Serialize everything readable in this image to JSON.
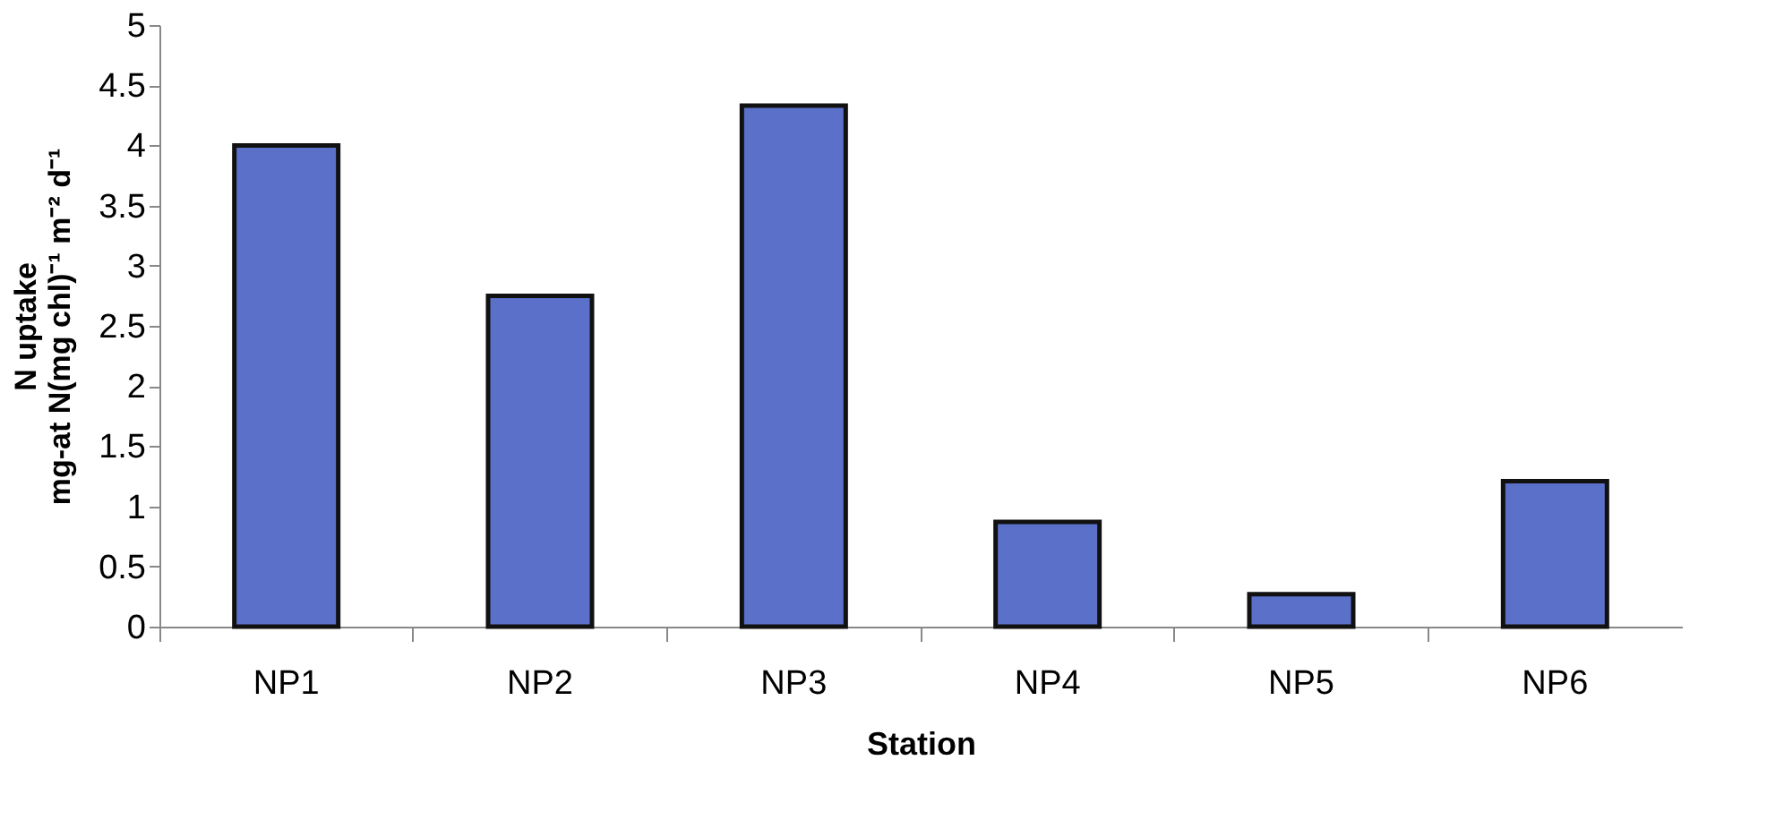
{
  "chart_data": {
    "type": "bar",
    "xlabel": "Station",
    "ylabel": "N uptake\nmg-at N(mg chl)⁻¹ m⁻² d⁻¹",
    "categories": [
      "NP1",
      "NP2",
      "NP3",
      "NP4",
      "NP5",
      "NP6"
    ],
    "values": [
      4.0,
      2.75,
      4.33,
      0.87,
      0.27,
      1.21
    ],
    "color": "#5b70c8",
    "ylim": [
      0,
      5
    ],
    "yticks": [
      0,
      0.5,
      1,
      1.5,
      2,
      2.5,
      3,
      3.5,
      4,
      4.5,
      5
    ],
    "grid": false
  }
}
